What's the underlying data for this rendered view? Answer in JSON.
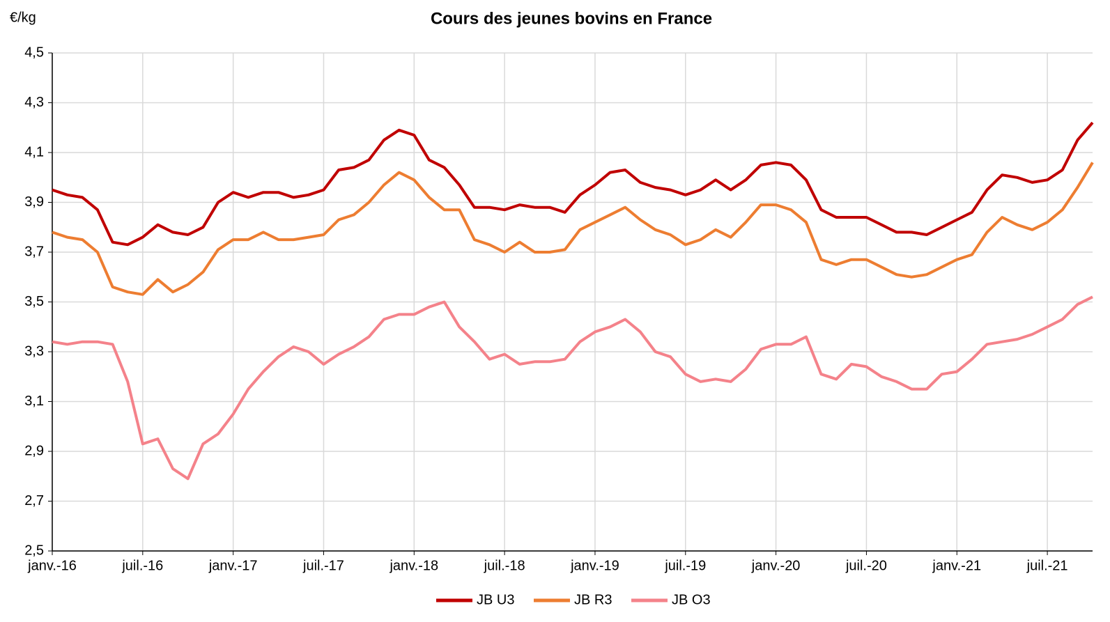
{
  "chart_data": {
    "type": "line",
    "title": "Cours des jeunes bovins en France",
    "y_label": "€/kg",
    "categories": [
      "janv.-16",
      null,
      null,
      null,
      null,
      null,
      "juil.-16",
      null,
      null,
      null,
      null,
      null,
      "janv.-17",
      null,
      null,
      null,
      null,
      null,
      "juil.-17",
      null,
      null,
      null,
      null,
      null,
      "janv.-18",
      null,
      null,
      null,
      null,
      null,
      "juil.-18",
      null,
      null,
      null,
      null,
      null,
      "janv.-19",
      null,
      null,
      null,
      null,
      null,
      "juil.-19",
      null,
      null,
      null,
      null,
      null,
      "janv.-20",
      null,
      null,
      null,
      null,
      null,
      "juil.-20",
      null,
      null,
      null,
      null,
      null,
      "janv.-21",
      null,
      null,
      null,
      null,
      null,
      "juil.-21",
      null,
      null,
      null
    ],
    "series": [
      {
        "name": "JB U3",
        "color": "#c00000",
        "values": [
          3.95,
          3.93,
          3.92,
          3.87,
          3.74,
          3.73,
          3.76,
          3.81,
          3.78,
          3.77,
          3.8,
          3.9,
          3.94,
          3.92,
          3.94,
          3.94,
          3.92,
          3.93,
          3.95,
          4.03,
          4.04,
          4.07,
          4.15,
          4.19,
          4.17,
          4.07,
          4.04,
          3.97,
          3.88,
          3.88,
          3.87,
          3.89,
          3.88,
          3.88,
          3.86,
          3.93,
          3.97,
          4.02,
          4.03,
          3.98,
          3.96,
          3.95,
          3.93,
          3.95,
          3.99,
          3.95,
          3.99,
          4.05,
          4.06,
          4.05,
          3.99,
          3.87,
          3.84,
          3.84,
          3.84,
          3.81,
          3.78,
          3.78,
          3.77,
          3.8,
          3.83,
          3.86,
          3.95,
          4.01,
          4.0,
          3.98,
          3.99,
          4.03,
          4.15,
          4.22
        ]
      },
      {
        "name": "JB R3",
        "color": "#ed7d31",
        "values": [
          3.78,
          3.76,
          3.75,
          3.7,
          3.56,
          3.54,
          3.53,
          3.59,
          3.54,
          3.57,
          3.62,
          3.71,
          3.75,
          3.75,
          3.78,
          3.75,
          3.75,
          3.76,
          3.77,
          3.83,
          3.85,
          3.9,
          3.97,
          4.02,
          3.99,
          3.92,
          3.87,
          3.87,
          3.75,
          3.73,
          3.7,
          3.74,
          3.7,
          3.7,
          3.71,
          3.79,
          3.82,
          3.85,
          3.88,
          3.83,
          3.79,
          3.77,
          3.73,
          3.75,
          3.79,
          3.76,
          3.82,
          3.89,
          3.89,
          3.87,
          3.82,
          3.67,
          3.65,
          3.67,
          3.67,
          3.64,
          3.61,
          3.6,
          3.61,
          3.64,
          3.67,
          3.69,
          3.78,
          3.84,
          3.81,
          3.79,
          3.82,
          3.87,
          3.96,
          4.06
        ]
      },
      {
        "name": "JB O3",
        "color": "#f4828a",
        "values": [
          3.34,
          3.33,
          3.34,
          3.34,
          3.33,
          3.18,
          2.93,
          2.95,
          2.83,
          2.79,
          2.93,
          2.97,
          3.05,
          3.15,
          3.22,
          3.28,
          3.32,
          3.3,
          3.25,
          3.29,
          3.32,
          3.36,
          3.43,
          3.45,
          3.45,
          3.48,
          3.5,
          3.4,
          3.34,
          3.27,
          3.29,
          3.25,
          3.26,
          3.26,
          3.27,
          3.34,
          3.38,
          3.4,
          3.43,
          3.38,
          3.3,
          3.28,
          3.21,
          3.18,
          3.19,
          3.18,
          3.23,
          3.31,
          3.33,
          3.33,
          3.36,
          3.21,
          3.19,
          3.25,
          3.24,
          3.2,
          3.18,
          3.15,
          3.15,
          3.21,
          3.22,
          3.27,
          3.33,
          3.34,
          3.35,
          3.37,
          3.4,
          3.43,
          3.49,
          3.52
        ]
      }
    ],
    "ylim": [
      2.5,
      4.5
    ],
    "yticks": [
      {
        "value": 2.5,
        "label": "2,5"
      },
      {
        "value": 2.7,
        "label": "2,7"
      },
      {
        "value": 2.9,
        "label": "2,9"
      },
      {
        "value": 3.1,
        "label": "3,1"
      },
      {
        "value": 3.3,
        "label": "3,3"
      },
      {
        "value": 3.5,
        "label": "3,5"
      },
      {
        "value": 3.7,
        "label": "3,7"
      },
      {
        "value": 3.9,
        "label": "3,9"
      },
      {
        "value": 4.1,
        "label": "4,1"
      },
      {
        "value": 4.3,
        "label": "4,3"
      },
      {
        "value": 4.5,
        "label": "4,5"
      }
    ],
    "grid": true,
    "legend": "bottom"
  }
}
